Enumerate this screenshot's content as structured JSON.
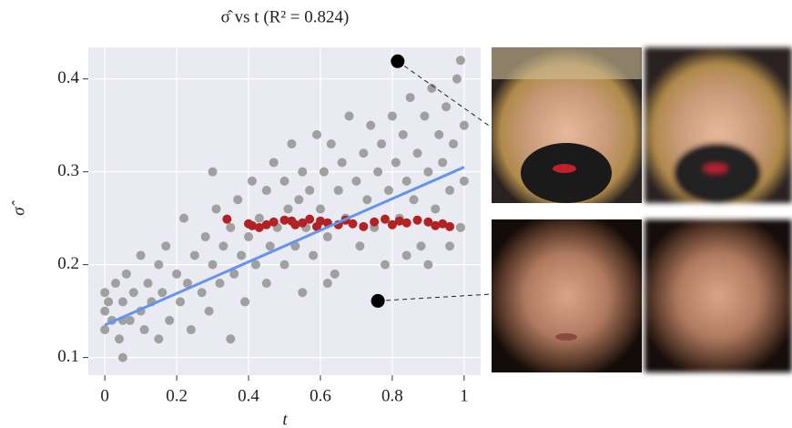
{
  "chart_data": {
    "type": "scatter",
    "title": "σ̂ vs t (R² = 0.824)",
    "x_label": "t",
    "y_label": "σ̂",
    "xlim": [
      -0.046,
      1.046
    ],
    "ylim": [
      0.081,
      0.434
    ],
    "xticks": [
      0,
      0.2,
      0.4,
      0.6,
      0.8,
      1
    ],
    "yticks": [
      0.1,
      0.2,
      0.3,
      0.4
    ],
    "grid": true,
    "series": [
      {
        "color": "#a0a0a0",
        "x": [
          0,
          0,
          0,
          0.01,
          0.02,
          0.03,
          0.04,
          0.05,
          0.05,
          0.06,
          0.07,
          0.08,
          0.1,
          0.1,
          0.11,
          0.12,
          0.13,
          0.15,
          0.15,
          0.16,
          0.17,
          0.18,
          0.2,
          0.21,
          0.22,
          0.23,
          0.24,
          0.25,
          0.27,
          0.28,
          0.29,
          0.3,
          0.31,
          0.32,
          0.33,
          0.35,
          0.35,
          0.36,
          0.37,
          0.38,
          0.39,
          0.4,
          0.41,
          0.42,
          0.43,
          0.45,
          0.45,
          0.46,
          0.47,
          0.48,
          0.5,
          0.5,
          0.51,
          0.52,
          0.53,
          0.54,
          0.55,
          0.55,
          0.56,
          0.57,
          0.58,
          0.59,
          0.6,
          0.61,
          0.62,
          0.63,
          0.64,
          0.65,
          0.66,
          0.67,
          0.68,
          0.7,
          0.71,
          0.72,
          0.73,
          0.74,
          0.75,
          0.76,
          0.77,
          0.78,
          0.79,
          0.8,
          0.81,
          0.82,
          0.83,
          0.84,
          0.85,
          0.86,
          0.87,
          0.88,
          0.89,
          0.9,
          0.91,
          0.92,
          0.93,
          0.94,
          0.95,
          0.96,
          0.97,
          0.98,
          0.99,
          1,
          1,
          0.99,
          0.96,
          0.9,
          0.3,
          0.62,
          0.84,
          0.05
        ],
        "values": [
          0.15,
          0.17,
          0.13,
          0.16,
          0.14,
          0.18,
          0.12,
          0.1,
          0.16,
          0.19,
          0.14,
          0.17,
          0.15,
          0.21,
          0.13,
          0.18,
          0.16,
          0.2,
          0.12,
          0.17,
          0.22,
          0.14,
          0.19,
          0.16,
          0.25,
          0.18,
          0.13,
          0.21,
          0.17,
          0.23,
          0.15,
          0.2,
          0.26,
          0.18,
          0.22,
          0.12,
          0.24,
          0.19,
          0.27,
          0.21,
          0.16,
          0.23,
          0.29,
          0.2,
          0.25,
          0.18,
          0.28,
          0.22,
          0.31,
          0.24,
          0.2,
          0.29,
          0.26,
          0.33,
          0.22,
          0.27,
          0.17,
          0.3,
          0.24,
          0.28,
          0.21,
          0.34,
          0.26,
          0.3,
          0.23,
          0.33,
          0.19,
          0.28,
          0.31,
          0.25,
          0.36,
          0.29,
          0.22,
          0.32,
          0.27,
          0.35,
          0.24,
          0.3,
          0.33,
          0.2,
          0.28,
          0.36,
          0.31,
          0.25,
          0.34,
          0.29,
          0.38,
          0.27,
          0.32,
          0.22,
          0.36,
          0.3,
          0.39,
          0.26,
          0.34,
          0.31,
          0.37,
          0.28,
          0.33,
          0.4,
          0.24,
          0.35,
          0.29,
          0.42,
          0.22,
          0.2,
          0.3,
          0.18,
          0.21,
          0.14
        ]
      },
      {
        "color": "#b22222",
        "x": [
          0.34,
          0.4,
          0.41,
          0.43,
          0.45,
          0.47,
          0.5,
          0.52,
          0.53,
          0.55,
          0.57,
          0.59,
          0.6,
          0.62,
          0.65,
          0.67,
          0.69,
          0.72,
          0.75,
          0.78,
          0.8,
          0.82,
          0.84,
          0.87,
          0.9,
          0.92,
          0.94,
          0.96
        ],
        "values": [
          0.249,
          0.244,
          0.242,
          0.24,
          0.243,
          0.246,
          0.248,
          0.247,
          0.243,
          0.245,
          0.249,
          0.241,
          0.247,
          0.245,
          0.243,
          0.248,
          0.244,
          0.241,
          0.246,
          0.249,
          0.243,
          0.247,
          0.245,
          0.248,
          0.246,
          0.242,
          0.244,
          0.241
        ]
      },
      {
        "type": "line",
        "color": "#6495ed",
        "x": [
          0,
          1
        ],
        "values": [
          0.135,
          0.305
        ]
      },
      {
        "color": "#000000",
        "x": [
          0.815,
          0.76
        ],
        "values": [
          0.419,
          0.161
        ]
      }
    ]
  }
}
